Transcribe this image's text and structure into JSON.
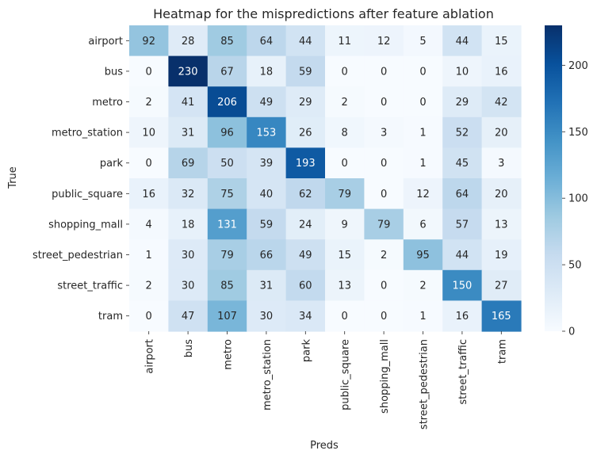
{
  "chart_data": {
    "type": "heatmap",
    "title": "Heatmap for the mispredictions after feature ablation",
    "xlabel": "Preds",
    "ylabel": "True",
    "x_categories": [
      "airport",
      "bus",
      "metro",
      "metro_station",
      "park",
      "public_square",
      "shopping_mall",
      "street_pedestrian",
      "street_traffic",
      "tram"
    ],
    "y_categories": [
      "airport",
      "bus",
      "metro",
      "metro_station",
      "park",
      "public_square",
      "shopping_mall",
      "street_pedestrian",
      "street_traffic",
      "tram"
    ],
    "values": [
      [
        92,
        28,
        85,
        64,
        44,
        11,
        12,
        5,
        44,
        15
      ],
      [
        0,
        230,
        67,
        18,
        59,
        0,
        0,
        0,
        10,
        16
      ],
      [
        2,
        41,
        206,
        49,
        29,
        2,
        0,
        0,
        29,
        42
      ],
      [
        10,
        31,
        96,
        153,
        26,
        8,
        3,
        1,
        52,
        20
      ],
      [
        0,
        69,
        50,
        39,
        193,
        0,
        0,
        1,
        45,
        3
      ],
      [
        16,
        32,
        75,
        40,
        62,
        79,
        0,
        12,
        64,
        20
      ],
      [
        4,
        18,
        131,
        59,
        24,
        9,
        79,
        6,
        57,
        13
      ],
      [
        1,
        30,
        79,
        66,
        49,
        15,
        2,
        95,
        44,
        19
      ],
      [
        2,
        30,
        85,
        31,
        60,
        13,
        0,
        2,
        150,
        27
      ],
      [
        0,
        47,
        107,
        30,
        34,
        0,
        0,
        1,
        16,
        165
      ]
    ],
    "colorbar": {
      "colormap": "Blues",
      "range": [
        0,
        230
      ],
      "ticks": [
        0,
        50,
        100,
        150,
        200
      ]
    },
    "grid": false
  }
}
